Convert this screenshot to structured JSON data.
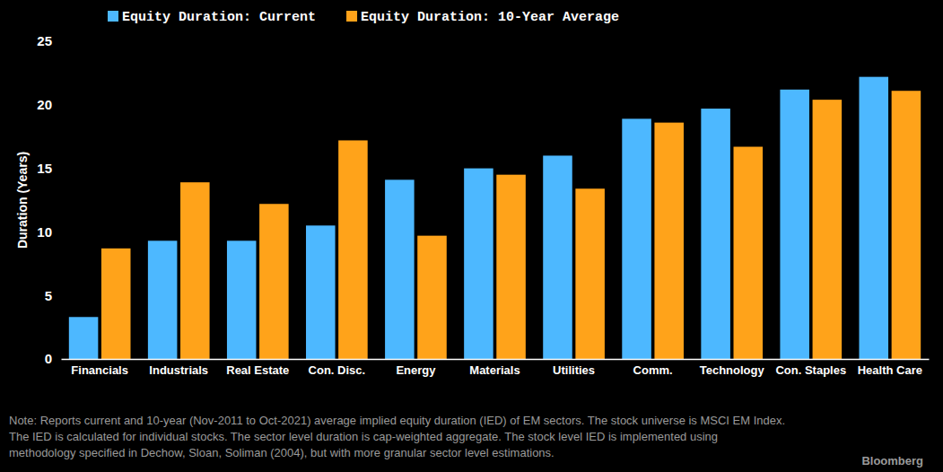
{
  "chart_data": {
    "type": "bar",
    "y_label": "Duration (Years)",
    "categories": [
      "Financials",
      "Industrials",
      "Real Estate",
      "Con. Disc.",
      "Energy",
      "Materials",
      "Utilities",
      "Comm.",
      "Technology",
      "Con. Staples",
      "Health Care"
    ],
    "series": [
      {
        "name": "Equity Duration: Current",
        "color": "#4db8ff",
        "values": [
          3.3,
          9.3,
          9.3,
          10.5,
          14.1,
          15.0,
          16.0,
          18.9,
          19.7,
          21.2,
          22.2
        ]
      },
      {
        "name": "Equity Duration: 10-Year Average",
        "color": "#ffa31a",
        "values": [
          8.7,
          13.9,
          12.2,
          17.2,
          9.7,
          14.5,
          13.4,
          18.6,
          16.7,
          20.4,
          21.1
        ]
      }
    ],
    "ylim": [
      0,
      25
    ],
    "yticks": [
      0,
      5,
      10,
      15,
      20,
      25
    ],
    "grid": false,
    "legend": "top",
    "note": [
      "Note: Reports current and 10-year (Nov-2011 to Oct-2021) average implied equity duration (IED) of EM sectors. The stock universe is MSCI EM Index.",
      "The IED is calculated for individual stocks. The sector level duration is cap-weighted aggregate. The stock level IED is implemented using",
      "methodology specified in Dechow, Sloan, Soliman (2004), but with more granular sector level estimations."
    ],
    "source": "Bloomberg"
  }
}
